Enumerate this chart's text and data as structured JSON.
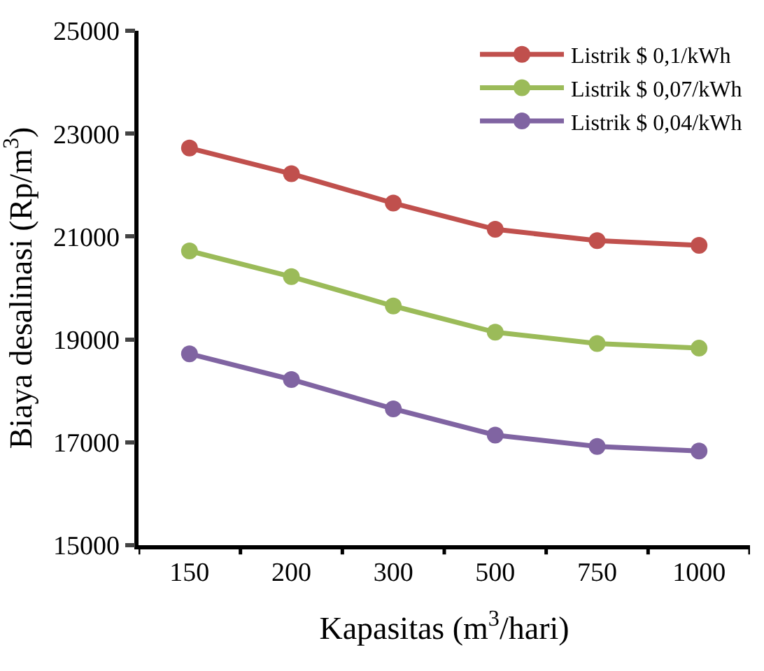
{
  "chart_data": {
    "type": "line",
    "xlabel": "Kapasitas (m$^{3}$/hari)",
    "ylabel": "Biaya desalinasi (Rp/m$^{3}$)",
    "categories": [
      "150",
      "200",
      "300",
      "500",
      "750",
      "1000"
    ],
    "series": [
      {
        "name": "Listrik $ 0,1/kWh",
        "color": "#c0504d",
        "values": [
          22720,
          22220,
          21650,
          21140,
          20920,
          20830
        ]
      },
      {
        "name": "Listrik $ 0,07/kWh",
        "color": "#9bbb59",
        "values": [
          20720,
          20220,
          19650,
          19140,
          18920,
          18830
        ]
      },
      {
        "name": "Listrik $ 0,04/kWh",
        "color": "#8064a2",
        "values": [
          18720,
          18220,
          17650,
          17140,
          16920,
          16830
        ]
      }
    ],
    "ylim": [
      15000,
      25000
    ],
    "yticks": [
      15000,
      17000,
      19000,
      21000,
      23000,
      25000
    ],
    "legend": "top right",
    "marker": "circle",
    "line_style": "solid"
  }
}
